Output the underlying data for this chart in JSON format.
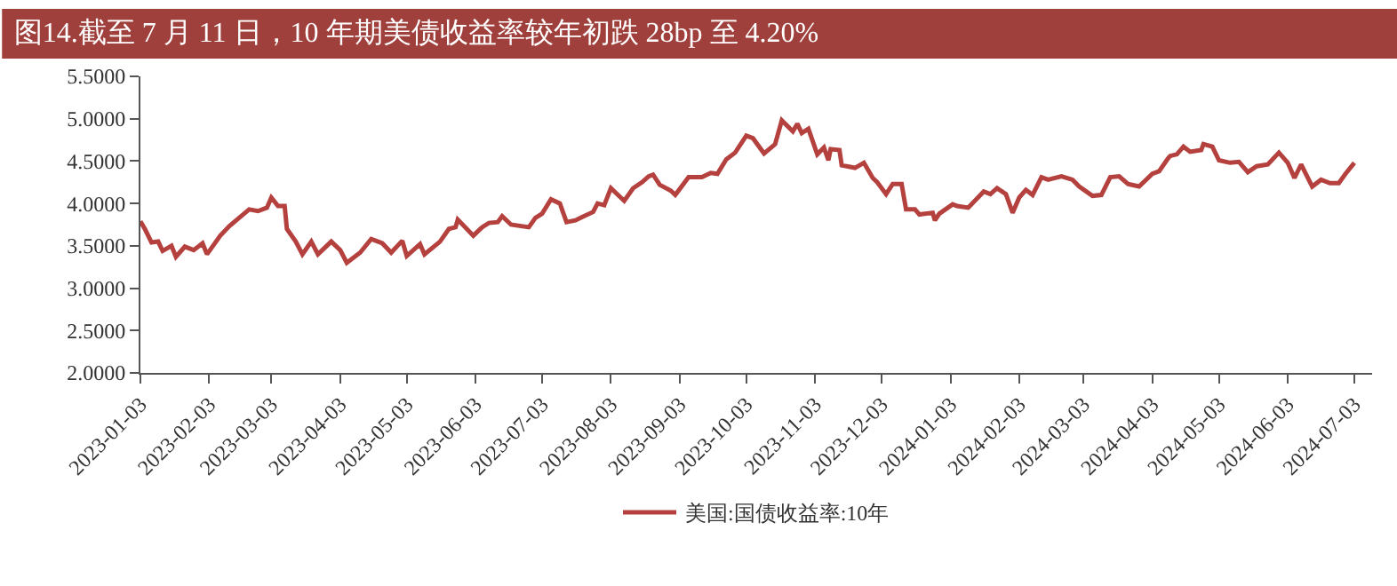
{
  "chart_data": {
    "type": "line",
    "title": "图14.截至 7 月 11 日，10 年期美债收益率较年初跌 28bp 至 4.20%",
    "x": [
      "2023-01-03",
      "2023-01-05",
      "2023-01-08",
      "2023-01-11",
      "2023-01-13",
      "2023-01-17",
      "2023-01-19",
      "2023-01-23",
      "2023-01-27",
      "2023-01-31",
      "2023-02-02",
      "2023-02-05",
      "2023-02-08",
      "2023-02-12",
      "2023-02-16",
      "2023-02-21",
      "2023-02-25",
      "2023-03-01",
      "2023-03-03",
      "2023-03-06",
      "2023-03-09",
      "2023-03-10",
      "2023-03-14",
      "2023-03-17",
      "2023-03-21",
      "2023-03-24",
      "2023-03-30",
      "2023-04-03",
      "2023-04-06",
      "2023-04-12",
      "2023-04-17",
      "2023-04-22",
      "2023-04-26",
      "2023-05-01",
      "2023-05-03",
      "2023-05-09",
      "2023-05-11",
      "2023-05-18",
      "2023-05-22",
      "2023-05-25",
      "2023-05-26",
      "2023-06-02",
      "2023-06-06",
      "2023-06-09",
      "2023-06-13",
      "2023-06-15",
      "2023-06-19",
      "2023-06-27",
      "2023-06-30",
      "2023-07-03",
      "2023-07-07",
      "2023-07-11",
      "2023-07-14",
      "2023-07-18",
      "2023-07-21",
      "2023-07-26",
      "2023-07-28",
      "2023-07-31",
      "2023-08-03",
      "2023-08-07",
      "2023-08-09",
      "2023-08-13",
      "2023-08-17",
      "2023-08-20",
      "2023-08-22",
      "2023-08-25",
      "2023-08-30",
      "2023-09-01",
      "2023-09-07",
      "2023-09-13",
      "2023-09-17",
      "2023-09-20",
      "2023-09-24",
      "2023-09-28",
      "2023-10-03",
      "2023-10-06",
      "2023-10-11",
      "2023-10-16",
      "2023-10-19",
      "2023-10-24",
      "2023-10-26",
      "2023-10-28",
      "2023-10-31",
      "2023-11-04",
      "2023-11-07",
      "2023-11-09",
      "2023-11-10",
      "2023-11-14",
      "2023-11-15",
      "2023-11-21",
      "2023-11-25",
      "2023-11-29",
      "2023-12-01",
      "2023-12-05",
      "2023-12-08",
      "2023-12-12",
      "2023-12-14",
      "2023-12-18",
      "2023-12-20",
      "2023-12-26",
      "2023-12-27",
      "2023-12-29",
      "2024-01-04",
      "2024-01-06",
      "2024-01-11",
      "2024-01-18",
      "2024-01-21",
      "2024-01-24",
      "2024-01-28",
      "2024-01-31",
      "2024-02-03",
      "2024-02-06",
      "2024-02-09",
      "2024-02-13",
      "2024-02-16",
      "2024-02-22",
      "2024-02-27",
      "2024-03-01",
      "2024-03-07",
      "2024-03-11",
      "2024-03-15",
      "2024-03-19",
      "2024-03-23",
      "2024-03-28",
      "2024-04-03",
      "2024-04-06",
      "2024-04-10",
      "2024-04-11",
      "2024-04-14",
      "2024-04-17",
      "2024-04-20",
      "2024-04-25",
      "2024-04-26",
      "2024-04-30",
      "2024-05-03",
      "2024-05-08",
      "2024-05-12",
      "2024-05-16",
      "2024-05-20",
      "2024-05-25",
      "2024-05-30",
      "2024-06-03",
      "2024-06-06",
      "2024-06-09",
      "2024-06-14",
      "2024-06-18",
      "2024-06-22",
      "2024-06-26",
      "2024-06-29",
      "2024-07-03"
    ],
    "series": [
      {
        "name": "美国:国债收益率:10年",
        "color": "#b5413f",
        "values": [
          3.79,
          3.7,
          3.54,
          3.55,
          3.44,
          3.5,
          3.37,
          3.49,
          3.45,
          3.53,
          3.4,
          3.51,
          3.62,
          3.73,
          3.82,
          3.93,
          3.91,
          3.95,
          4.07,
          3.97,
          3.97,
          3.7,
          3.55,
          3.4,
          3.55,
          3.4,
          3.55,
          3.45,
          3.3,
          3.42,
          3.58,
          3.53,
          3.42,
          3.56,
          3.38,
          3.52,
          3.4,
          3.55,
          3.7,
          3.72,
          3.81,
          3.62,
          3.72,
          3.77,
          3.78,
          3.85,
          3.75,
          3.72,
          3.83,
          3.88,
          4.05,
          4.0,
          3.78,
          3.8,
          3.84,
          3.9,
          4.0,
          3.98,
          4.18,
          4.08,
          4.03,
          4.18,
          4.25,
          4.32,
          4.34,
          4.22,
          4.15,
          4.1,
          4.31,
          4.31,
          4.36,
          4.35,
          4.52,
          4.6,
          4.8,
          4.77,
          4.59,
          4.7,
          4.98,
          4.85,
          4.94,
          4.83,
          4.88,
          4.58,
          4.66,
          4.51,
          4.64,
          4.63,
          4.45,
          4.42,
          4.48,
          4.3,
          4.25,
          4.11,
          4.23,
          4.23,
          3.93,
          3.93,
          3.87,
          3.89,
          3.8,
          3.88,
          3.99,
          3.97,
          3.95,
          4.14,
          4.11,
          4.18,
          4.11,
          3.89,
          4.07,
          4.16,
          4.1,
          4.31,
          4.28,
          4.32,
          4.28,
          4.2,
          4.09,
          4.1,
          4.31,
          4.32,
          4.23,
          4.2,
          4.35,
          4.38,
          4.53,
          4.56,
          4.58,
          4.67,
          4.61,
          4.63,
          4.7,
          4.67,
          4.51,
          4.48,
          4.49,
          4.37,
          4.44,
          4.46,
          4.6,
          4.48,
          4.3,
          4.46,
          4.2,
          4.28,
          4.24,
          4.24,
          4.35,
          4.48
        ]
      }
    ],
    "xlim": [
      "2023-01-03",
      "2024-07-11"
    ],
    "xticks": [
      "2023-01-03",
      "2023-02-03",
      "2023-03-03",
      "2023-04-03",
      "2023-05-03",
      "2023-06-03",
      "2023-07-03",
      "2023-08-03",
      "2023-09-03",
      "2023-10-03",
      "2023-11-03",
      "2023-12-03",
      "2024-01-03",
      "2024-02-03",
      "2024-03-03",
      "2024-04-03",
      "2024-05-03",
      "2024-06-03",
      "2024-07-03"
    ],
    "ylim": [
      2.0,
      5.5
    ],
    "yticks": [
      {
        "value": 2.0,
        "label": "2.0000"
      },
      {
        "value": 2.5,
        "label": "2.5000"
      },
      {
        "value": 3.0,
        "label": "3.0000"
      },
      {
        "value": 3.5,
        "label": "3.5000"
      },
      {
        "value": 4.0,
        "label": "4.0000"
      },
      {
        "value": 4.5,
        "label": "4.5000"
      },
      {
        "value": 5.0,
        "label": "5.0000"
      },
      {
        "value": 5.5,
        "label": "5.5000"
      }
    ],
    "legend": "bottom",
    "marker": "none",
    "line_style": "solid"
  }
}
